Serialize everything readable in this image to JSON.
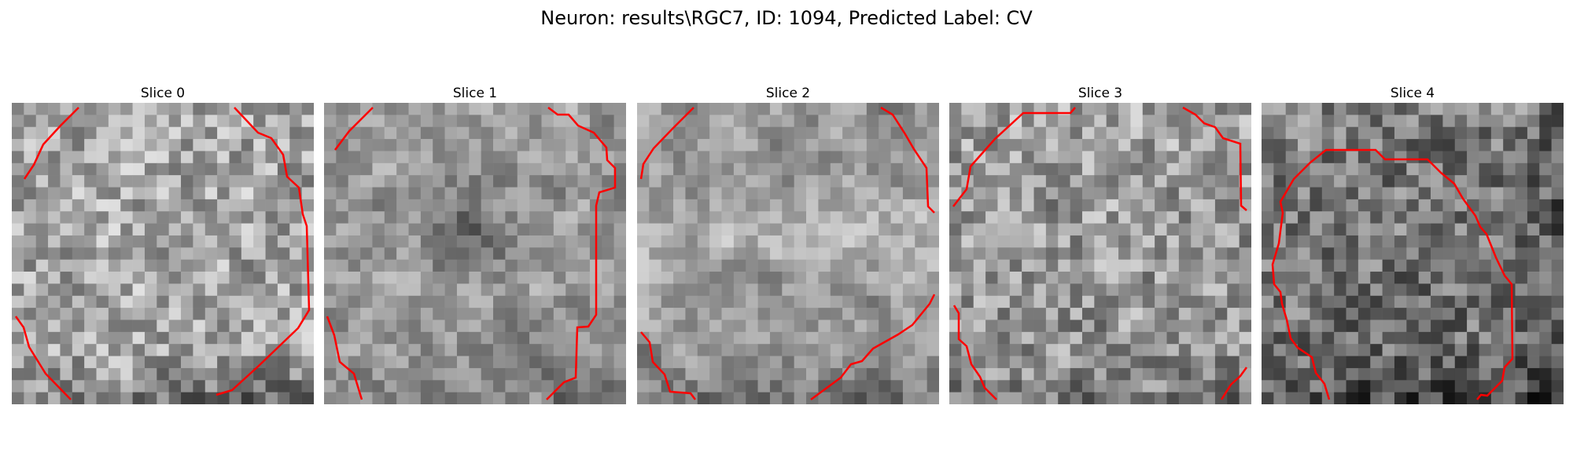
{
  "figure": {
    "title": "Neuron: results\\RGC7, ID: 1094, Predicted Label: CV"
  },
  "panels": [
    {
      "title": "Slice 0"
    },
    {
      "title": "Slice 1"
    },
    {
      "title": "Slice 2"
    },
    {
      "title": "Slice 3"
    },
    {
      "title": "Slice 4"
    }
  ],
  "colors": {
    "contour": "#ff0000",
    "colormap": "grayscale"
  }
}
